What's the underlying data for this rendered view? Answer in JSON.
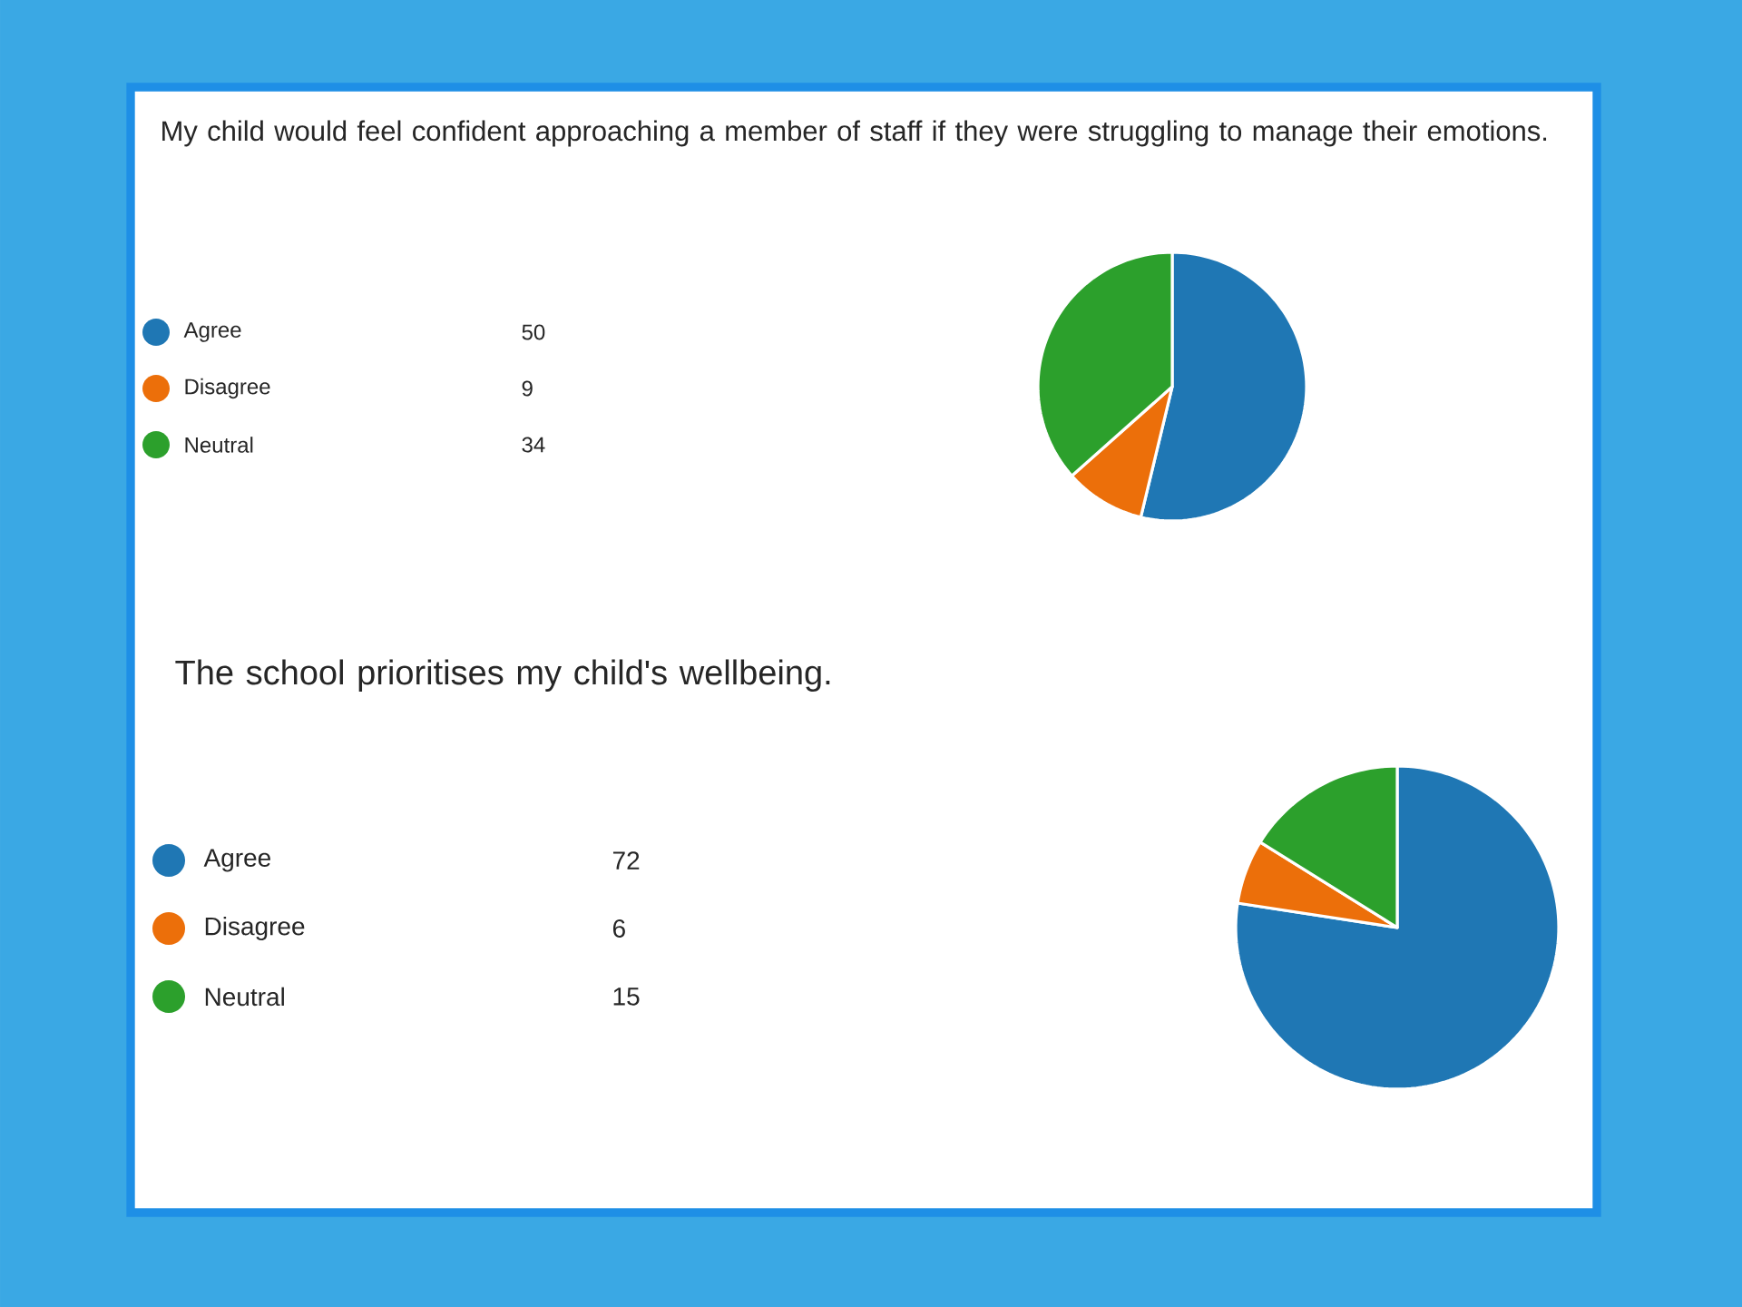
{
  "chart_data": [
    {
      "type": "pie",
      "title": "My child would feel confident approaching a member of staff if they were struggling to manage their emotions.",
      "categories": [
        "Agree",
        "Disagree",
        "Neutral"
      ],
      "values": [
        50,
        9,
        34
      ],
      "colors": [
        "#1f77b4",
        "#ec6f0a",
        "#2ca02c"
      ],
      "legend": "left",
      "data_labels": true
    },
    {
      "type": "pie",
      "title": "The school prioritises my child's wellbeing.",
      "categories": [
        "Agree",
        "Disagree",
        "Neutral"
      ],
      "values": [
        72,
        6,
        15
      ],
      "colors": [
        "#1f77b4",
        "#ec6f0a",
        "#2ca02c"
      ],
      "legend": "left",
      "data_labels": true
    }
  ]
}
